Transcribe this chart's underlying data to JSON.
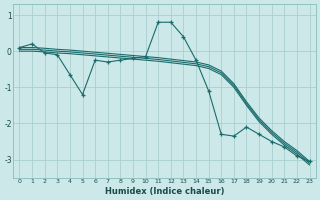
{
  "xlabel": "Humidex (Indice chaleur)",
  "bg_color": "#cce8e8",
  "grid_color": "#aad0d0",
  "line_color": "#1a6b6b",
  "xlim": [
    -0.5,
    23.5
  ],
  "ylim": [
    -3.5,
    1.3
  ],
  "yticks": [
    1,
    0,
    -1,
    -2,
    -3
  ],
  "xticks": [
    0,
    1,
    2,
    3,
    4,
    5,
    6,
    7,
    8,
    9,
    10,
    11,
    12,
    13,
    14,
    15,
    16,
    17,
    18,
    19,
    20,
    21,
    22,
    23
  ],
  "line1_x": [
    0,
    1,
    2,
    3,
    4,
    5,
    6,
    7,
    8,
    9,
    10,
    11,
    12,
    13,
    14,
    15,
    16,
    17,
    18,
    19,
    20,
    21,
    22,
    23
  ],
  "line1_y": [
    0.1,
    0.1,
    0.08,
    0.05,
    0.03,
    0.0,
    -0.03,
    -0.06,
    -0.09,
    -0.12,
    -0.15,
    -0.18,
    -0.22,
    -0.26,
    -0.3,
    -0.38,
    -0.55,
    -0.9,
    -1.4,
    -1.85,
    -2.2,
    -2.5,
    -2.75,
    -3.05
  ],
  "line2_x": [
    0,
    1,
    2,
    3,
    4,
    5,
    6,
    7,
    8,
    9,
    10,
    11,
    12,
    13,
    14,
    15,
    16,
    17,
    18,
    19,
    20,
    21,
    22,
    23
  ],
  "line2_y": [
    0.05,
    0.05,
    0.03,
    0.0,
    -0.02,
    -0.05,
    -0.08,
    -0.11,
    -0.14,
    -0.17,
    -0.2,
    -0.23,
    -0.27,
    -0.31,
    -0.35,
    -0.43,
    -0.6,
    -0.95,
    -1.45,
    -1.9,
    -2.25,
    -2.55,
    -2.8,
    -3.1
  ],
  "line3_x": [
    0,
    1,
    2,
    3,
    4,
    5,
    6,
    7,
    8,
    9,
    10,
    11,
    12,
    13,
    14,
    15,
    16,
    17,
    18,
    19,
    20,
    21,
    22,
    23
  ],
  "line3_y": [
    0.0,
    0.0,
    -0.02,
    -0.05,
    -0.07,
    -0.1,
    -0.13,
    -0.16,
    -0.19,
    -0.22,
    -0.25,
    -0.28,
    -0.32,
    -0.36,
    -0.4,
    -0.48,
    -0.65,
    -1.0,
    -1.5,
    -1.95,
    -2.3,
    -2.6,
    -2.85,
    -3.15
  ],
  "jagged_x": [
    0,
    1,
    2,
    3,
    4,
    5,
    6,
    7,
    8,
    9,
    10,
    11,
    12,
    13,
    14,
    15,
    16,
    17,
    18,
    19,
    20,
    21,
    22,
    23
  ],
  "jagged_y": [
    0.1,
    0.2,
    -0.05,
    -0.1,
    -0.65,
    -1.2,
    -0.25,
    -0.3,
    -0.25,
    -0.2,
    -0.15,
    0.8,
    0.8,
    0.4,
    -0.25,
    -1.1,
    -2.3,
    -2.35,
    -2.1,
    -2.3,
    -2.5,
    -2.65,
    -2.9,
    -3.05
  ]
}
